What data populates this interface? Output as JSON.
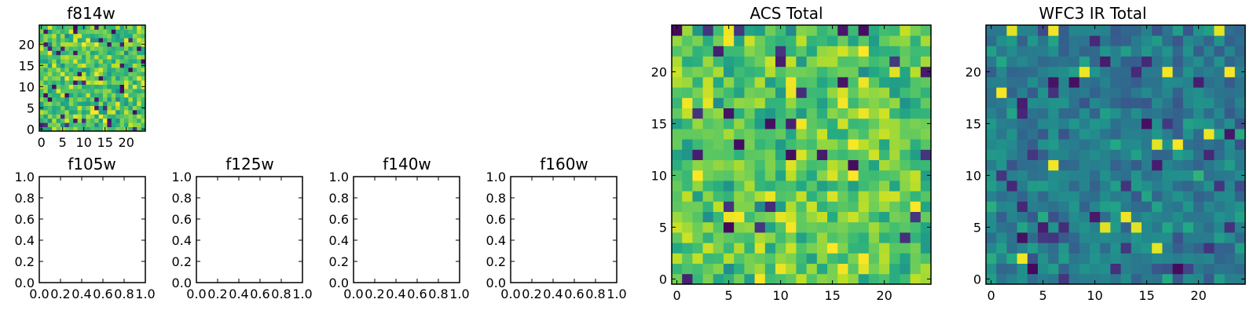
{
  "chart_data": [
    {
      "type": "heatmap",
      "title": "f814w",
      "grid_size": 25,
      "xlim": [
        -0.5,
        24.5
      ],
      "ylim": [
        -0.5,
        24.5
      ],
      "xticks": [
        0,
        5,
        10,
        15,
        20
      ],
      "yticks": [
        0,
        5,
        10,
        15,
        20
      ],
      "colormap": "viridis",
      "seed": 814,
      "fill_level": 0.72,
      "fill_spread": 0.14,
      "dark_fraction": 0.06
    },
    {
      "type": "empty",
      "title": "f105w",
      "xlim": [
        0,
        1
      ],
      "ylim": [
        0,
        1
      ],
      "xticks": [
        "0.0",
        "0.2",
        "0.4",
        "0.6",
        "0.8",
        "1.0"
      ],
      "yticks": [
        "0.0",
        "0.2",
        "0.4",
        "0.6",
        "0.8",
        "1.0"
      ]
    },
    {
      "type": "empty",
      "title": "f125w",
      "xlim": [
        0,
        1
      ],
      "ylim": [
        0,
        1
      ],
      "xticks": [
        "0.0",
        "0.2",
        "0.4",
        "0.6",
        "0.8",
        "1.0"
      ],
      "yticks": [
        "0.0",
        "0.2",
        "0.4",
        "0.6",
        "0.8",
        "1.0"
      ]
    },
    {
      "type": "empty",
      "title": "f140w",
      "xlim": [
        0,
        1
      ],
      "ylim": [
        0,
        1
      ],
      "xticks": [
        "0.0",
        "0.2",
        "0.4",
        "0.6",
        "0.8",
        "1.0"
      ],
      "yticks": [
        "0.0",
        "0.2",
        "0.4",
        "0.6",
        "0.8",
        "1.0"
      ]
    },
    {
      "type": "empty",
      "title": "f160w",
      "xlim": [
        0,
        1
      ],
      "ylim": [
        0,
        1
      ],
      "xticks": [
        "0.0",
        "0.2",
        "0.4",
        "0.6",
        "0.8",
        "1.0"
      ],
      "yticks": [
        "0.0",
        "0.2",
        "0.4",
        "0.6",
        "0.8",
        "1.0"
      ]
    },
    {
      "type": "heatmap",
      "title": "ACS Total",
      "grid_size": 25,
      "xlim": [
        -0.5,
        24.5
      ],
      "ylim": [
        -0.5,
        24.5
      ],
      "xticks": [
        0,
        5,
        10,
        15,
        20
      ],
      "yticks": [
        0,
        5,
        10,
        15,
        20
      ],
      "colormap": "viridis",
      "seed": 1701,
      "fill_level": 0.74,
      "fill_spread": 0.13,
      "dark_fraction": 0.05
    },
    {
      "type": "heatmap",
      "title": "WFC3 IR Total",
      "grid_size": 25,
      "xlim": [
        -0.5,
        24.5
      ],
      "ylim": [
        -0.5,
        24.5
      ],
      "xticks": [
        0,
        5,
        10,
        15,
        20
      ],
      "yticks": [
        0,
        5,
        10,
        15,
        20
      ],
      "colormap": "viridis",
      "seed": 3105,
      "fill_level": 0.42,
      "fill_spread": 0.1,
      "dark_fraction": 0.05
    }
  ]
}
